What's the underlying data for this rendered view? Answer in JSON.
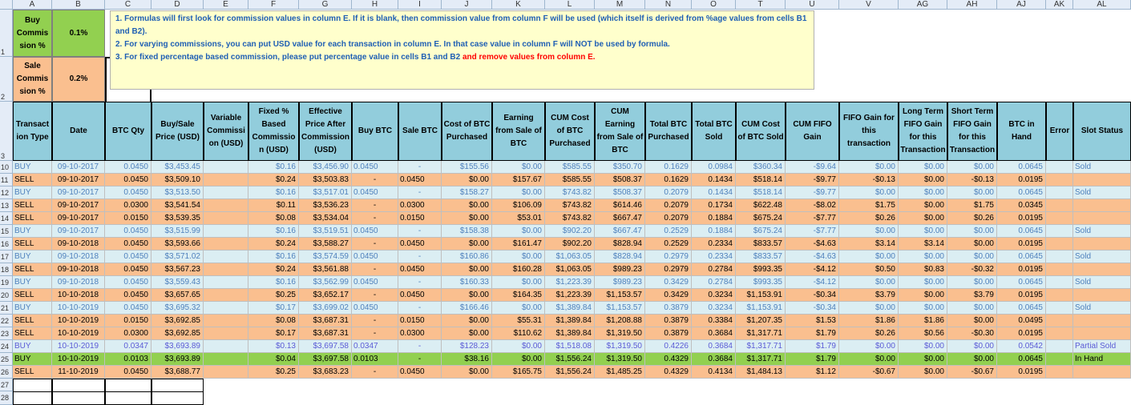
{
  "columns": [
    "A",
    "B",
    "C",
    "D",
    "E",
    "F",
    "G",
    "H",
    "I",
    "J",
    "K",
    "L",
    "M",
    "N",
    "O",
    "T",
    "U",
    "V",
    "AG",
    "AH",
    "AJ",
    "AK",
    "AL"
  ],
  "row_numbers": [
    "1",
    "2",
    "3",
    "10",
    "11",
    "12",
    "13",
    "14",
    "15",
    "16",
    "17",
    "18",
    "19",
    "20",
    "21",
    "22",
    "23",
    "24",
    "25",
    "26",
    "27",
    "28"
  ],
  "params": {
    "buy_label": "Buy Commis sion %",
    "buy_value": "0.1%",
    "sale_label": "Sale Commis sion %",
    "sale_value": "0.2%"
  },
  "notes": {
    "line1": "1. Formulas will first look for commission values in column E. If it is blank, then commission value from column F will be used (which itself  is derived from %age values from cells B1 and B2).",
    "line2": "2. For varying commissions, you can put USD value for each transaction in column E. In that case value in column F will NOT be used by formula.",
    "line3a": "3. For fixed percentage based commission, please put percentage value in cells B1 and B2 ",
    "line3b": "and remove values from column E."
  },
  "headers": [
    "Transact ion Type",
    "Date",
    "BTC Qty",
    "Buy/Sale Price (USD)",
    "Variable Commissi on (USD)",
    "Fixed % Based Commissio n (USD)",
    "Effective Price After Commission (USD)",
    "Buy BTC",
    "Sale BTC",
    "Cost of BTC Purchased",
    "Earning from Sale of BTC",
    "CUM Cost of BTC Purchased",
    "CUM Earning from Sale of BTC",
    "Total BTC Purchased",
    "Total BTC Sold",
    "CUM Cost of BTC Sold",
    "CUM FIFO Gain",
    "FIFO Gain for this transaction",
    "Long Term FIFO Gain for this Transaction",
    "Short Term FIFO Gain for this Transaction",
    "BTC in Hand",
    "Error",
    "Slot Status"
  ],
  "rows": [
    {
      "kind": "buy",
      "cells": [
        "BUY",
        "09-10-2017",
        "0.0450",
        "$3,453.45",
        "",
        "$0.16",
        "$3,456.90",
        "0.0450",
        "-",
        "$155.56",
        "$0.00",
        "$585.55",
        "$350.70",
        "0.1629",
        "0.0984",
        "$360.34",
        "-$9.64",
        "$0.00",
        "$0.00",
        "$0.00",
        "0.0645",
        "",
        "Sold"
      ]
    },
    {
      "kind": "sell",
      "cells": [
        "SELL",
        "09-10-2017",
        "0.0450",
        "$3,509.10",
        "",
        "$0.24",
        "$3,503.83",
        "-",
        "0.0450",
        "$0.00",
        "$157.67",
        "$585.55",
        "$508.37",
        "0.1629",
        "0.1434",
        "$518.14",
        "-$9.77",
        "-$0.13",
        "$0.00",
        "-$0.13",
        "0.0195",
        "",
        ""
      ]
    },
    {
      "kind": "buy",
      "cells": [
        "BUY",
        "09-10-2017",
        "0.0450",
        "$3,513.50",
        "",
        "$0.16",
        "$3,517.01",
        "0.0450",
        "-",
        "$158.27",
        "$0.00",
        "$743.82",
        "$508.37",
        "0.2079",
        "0.1434",
        "$518.14",
        "-$9.77",
        "$0.00",
        "$0.00",
        "$0.00",
        "0.0645",
        "",
        "Sold"
      ]
    },
    {
      "kind": "sell",
      "cells": [
        "SELL",
        "09-10-2017",
        "0.0300",
        "$3,541.54",
        "",
        "$0.11",
        "$3,536.23",
        "-",
        "0.0300",
        "$0.00",
        "$106.09",
        "$743.82",
        "$614.46",
        "0.2079",
        "0.1734",
        "$622.48",
        "-$8.02",
        "$1.75",
        "$0.00",
        "$1.75",
        "0.0345",
        "",
        ""
      ]
    },
    {
      "kind": "sell",
      "cells": [
        "SELL",
        "09-10-2017",
        "0.0150",
        "$3,539.35",
        "",
        "$0.08",
        "$3,534.04",
        "-",
        "0.0150",
        "$0.00",
        "$53.01",
        "$743.82",
        "$667.47",
        "0.2079",
        "0.1884",
        "$675.24",
        "-$7.77",
        "$0.26",
        "$0.00",
        "$0.26",
        "0.0195",
        "",
        ""
      ]
    },
    {
      "kind": "buy",
      "cells": [
        "BUY",
        "09-10-2017",
        "0.0450",
        "$3,515.99",
        "",
        "$0.16",
        "$3,519.51",
        "0.0450",
        "-",
        "$158.38",
        "$0.00",
        "$902.20",
        "$667.47",
        "0.2529",
        "0.1884",
        "$675.24",
        "-$7.77",
        "$0.00",
        "$0.00",
        "$0.00",
        "0.0645",
        "",
        "Sold"
      ]
    },
    {
      "kind": "sell",
      "cells": [
        "SELL",
        "09-10-2018",
        "0.0450",
        "$3,593.66",
        "",
        "$0.24",
        "$3,588.27",
        "-",
        "0.0450",
        "$0.00",
        "$161.47",
        "$902.20",
        "$828.94",
        "0.2529",
        "0.2334",
        "$833.57",
        "-$4.63",
        "$3.14",
        "$3.14",
        "$0.00",
        "0.0195",
        "",
        ""
      ]
    },
    {
      "kind": "buy",
      "cells": [
        "BUY",
        "09-10-2018",
        "0.0450",
        "$3,571.02",
        "",
        "$0.16",
        "$3,574.59",
        "0.0450",
        "-",
        "$160.86",
        "$0.00",
        "$1,063.05",
        "$828.94",
        "0.2979",
        "0.2334",
        "$833.57",
        "-$4.63",
        "$0.00",
        "$0.00",
        "$0.00",
        "0.0645",
        "",
        "Sold"
      ]
    },
    {
      "kind": "sell",
      "cells": [
        "SELL",
        "09-10-2018",
        "0.0450",
        "$3,567.23",
        "",
        "$0.24",
        "$3,561.88",
        "-",
        "0.0450",
        "$0.00",
        "$160.28",
        "$1,063.05",
        "$989.23",
        "0.2979",
        "0.2784",
        "$993.35",
        "-$4.12",
        "$0.50",
        "$0.83",
        "-$0.32",
        "0.0195",
        "",
        ""
      ]
    },
    {
      "kind": "buy",
      "cells": [
        "BUY",
        "09-10-2018",
        "0.0450",
        "$3,559.43",
        "",
        "$0.16",
        "$3,562.99",
        "0.0450",
        "-",
        "$160.33",
        "$0.00",
        "$1,223.39",
        "$989.23",
        "0.3429",
        "0.2784",
        "$993.35",
        "-$4.12",
        "$0.00",
        "$0.00",
        "$0.00",
        "0.0645",
        "",
        "Sold"
      ]
    },
    {
      "kind": "sell",
      "cells": [
        "SELL",
        "10-10-2018",
        "0.0450",
        "$3,657.65",
        "",
        "$0.25",
        "$3,652.17",
        "-",
        "0.0450",
        "$0.00",
        "$164.35",
        "$1,223.39",
        "$1,153.57",
        "0.3429",
        "0.3234",
        "$1,153.91",
        "-$0.34",
        "$3.79",
        "$0.00",
        "$3.79",
        "0.0195",
        "",
        ""
      ]
    },
    {
      "kind": "buy",
      "cells": [
        "BUY",
        "10-10-2019",
        "0.0450",
        "$3,695.32",
        "",
        "$0.17",
        "$3,699.02",
        "0.0450",
        "-",
        "$166.46",
        "$0.00",
        "$1,389.84",
        "$1,153.57",
        "0.3879",
        "0.3234",
        "$1,153.91",
        "-$0.34",
        "$0.00",
        "$0.00",
        "$0.00",
        "0.0645",
        "",
        "Sold"
      ]
    },
    {
      "kind": "sell",
      "cells": [
        "SELL",
        "10-10-2019",
        "0.0150",
        "$3,692.85",
        "",
        "$0.08",
        "$3,687.31",
        "-",
        "0.0150",
        "$0.00",
        "$55.31",
        "$1,389.84",
        "$1,208.88",
        "0.3879",
        "0.3384",
        "$1,207.35",
        "$1.53",
        "$1.86",
        "$1.86",
        "$0.00",
        "0.0495",
        "",
        ""
      ]
    },
    {
      "kind": "sell",
      "cells": [
        "SELL",
        "10-10-2019",
        "0.0300",
        "$3,692.85",
        "",
        "$0.17",
        "$3,687.31",
        "-",
        "0.0300",
        "$0.00",
        "$110.62",
        "$1,389.84",
        "$1,319.50",
        "0.3879",
        "0.3684",
        "$1,317.71",
        "$1.79",
        "$0.26",
        "$0.56",
        "-$0.30",
        "0.0195",
        "",
        ""
      ]
    },
    {
      "kind": "partial",
      "cells": [
        "BUY",
        "10-10-2019",
        "0.0347",
        "$3,693.89",
        "",
        "$0.13",
        "$3,697.58",
        "0.0347",
        "-",
        "$128.23",
        "$0.00",
        "$1,518.08",
        "$1,319.50",
        "0.4226",
        "0.3684",
        "$1,317.71",
        "$1.79",
        "$0.00",
        "$0.00",
        "$0.00",
        "0.0542",
        "",
        "Partial Sold"
      ]
    },
    {
      "kind": "inhand",
      "cells": [
        "BUY",
        "10-10-2019",
        "0.0103",
        "$3,693.89",
        "",
        "$0.04",
        "$3,697.58",
        "0.0103",
        "-",
        "$38.16",
        "$0.00",
        "$1,556.24",
        "$1,319.50",
        "0.4329",
        "0.3684",
        "$1,317.71",
        "$1.79",
        "$0.00",
        "$0.00",
        "$0.00",
        "0.0645",
        "",
        "In Hand"
      ]
    },
    {
      "kind": "sell",
      "cells": [
        "SELL",
        "11-10-2019",
        "0.0450",
        "$3,688.77",
        "",
        "$0.25",
        "$3,683.23",
        "-",
        "0.0450",
        "$0.00",
        "$165.75",
        "$1,556.24",
        "$1,485.25",
        "0.4329",
        "0.4134",
        "$1,484.13",
        "$1.12",
        "-$0.67",
        "$0.00",
        "-$0.67",
        "0.0195",
        "",
        ""
      ]
    }
  ]
}
